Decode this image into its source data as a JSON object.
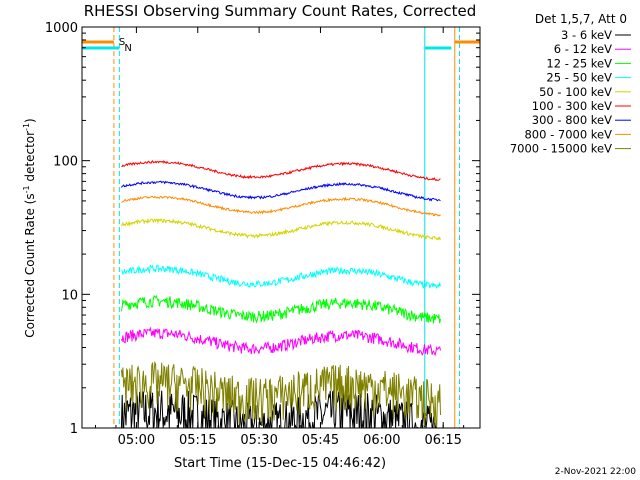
{
  "chart_data": {
    "type": "line",
    "title": "RHESSI Observing Summary Count Rates, Corrected",
    "xlabel": "Start Time (15-Dec-15 04:46:42)",
    "ylabel": "Corrected Count Rate (s⁻¹ detector⁻¹)",
    "ylabel_main": "Corrected Count Rate (s",
    "ylabel_sup1": "-1",
    "ylabel_mid": " detector",
    "ylabel_sup2": "-1",
    "ylabel_end": ")",
    "y_scale": "log",
    "ylim": [
      1,
      1000
    ],
    "xlim": [
      "04:46:42",
      "06:24:00"
    ],
    "x_ticks": [
      "05:00",
      "05:15",
      "05:30",
      "05:45",
      "06:00",
      "06:15"
    ],
    "y_ticks": [
      "1",
      "10",
      "100",
      "1000"
    ],
    "legend_title": "Det 1,5,7, Att 0",
    "legend_position": "right",
    "footer_date": "2-Nov-2021 22:00",
    "flags": [
      {
        "label": "S",
        "color": "#ff8c00",
        "value": 650
      },
      {
        "label": "N",
        "color": "#00e5e5",
        "value": 650
      }
    ],
    "markers": [
      {
        "time": "04:54:30",
        "color": "#ff8c00",
        "style": "dash"
      },
      {
        "time": "04:55:50",
        "color": "#00e5e5",
        "style": "dash"
      },
      {
        "time": "06:10:30",
        "color": "#00e5e5",
        "style": "solid"
      },
      {
        "time": "06:17:50",
        "color": "#ff8c00",
        "style": "solid"
      },
      {
        "time": "06:19:00",
        "color": "#00e5e5",
        "style": "dash"
      }
    ],
    "data_window": [
      "04:56:20",
      "06:14:20"
    ],
    "series": [
      {
        "name": "3 - 6 keV",
        "color": "#000000",
        "base": 1.2,
        "noise": 0.5
      },
      {
        "name": "6 - 12 keV",
        "color": "#ff00ff",
        "base": 4.6,
        "noise": 0.1
      },
      {
        "name": "12 - 25 keV",
        "color": "#00ff00",
        "base": 8.0,
        "noise": 0.1
      },
      {
        "name": "25 - 50 keV",
        "color": "#00ffff",
        "base": 14.0,
        "noise": 0.06
      },
      {
        "name": "50 - 100 keV",
        "color": "#d4d400",
        "base": 32.0,
        "noise": 0.03
      },
      {
        "name": "100 - 300 keV",
        "color": "#ff0000",
        "base": 88.0,
        "noise": 0.02
      },
      {
        "name": "300 - 800 keV",
        "color": "#0000ff",
        "base": 62.0,
        "noise": 0.02
      },
      {
        "name": "800 - 7000 keV",
        "color": "#ff8c00",
        "base": 48.0,
        "noise": 0.02
      },
      {
        "name": "7000 - 15000 keV",
        "color": "#808000",
        "base": 2.0,
        "noise": 0.4
      }
    ]
  }
}
